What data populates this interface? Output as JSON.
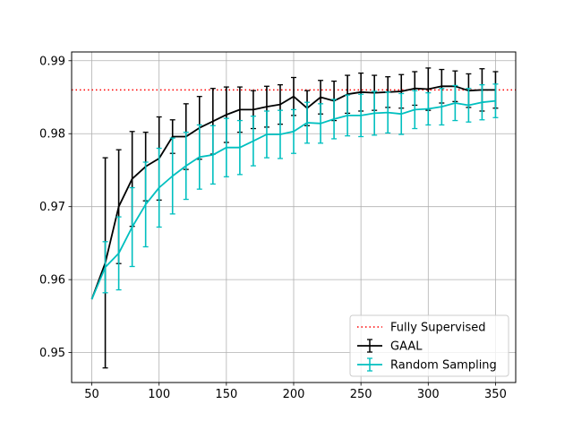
{
  "chart_data": {
    "type": "line",
    "title": "",
    "xlabel": "",
    "ylabel": "",
    "xlim": [
      35,
      365
    ],
    "ylim": [
      0.9459,
      0.9912
    ],
    "xticks": [
      50,
      100,
      150,
      200,
      250,
      300,
      350
    ],
    "yticks": [
      0.95,
      0.96,
      0.97,
      0.98,
      0.99
    ],
    "grid": true,
    "legend_position": "lower-right",
    "reference_line": {
      "name": "Fully Supervised",
      "y": 0.986,
      "color": "#ff0000",
      "style": "dotted"
    },
    "x": [
      50,
      60,
      70,
      80,
      90,
      100,
      110,
      120,
      130,
      140,
      150,
      160,
      170,
      180,
      190,
      200,
      210,
      220,
      230,
      240,
      250,
      260,
      270,
      280,
      290,
      300,
      310,
      320,
      330,
      340,
      350
    ],
    "series": [
      {
        "name": "GAAL",
        "color": "#000000",
        "values": [
          0.9573,
          0.9623,
          0.97,
          0.9738,
          0.9755,
          0.9766,
          0.9796,
          0.9796,
          0.9808,
          0.9817,
          0.9826,
          0.9833,
          0.9833,
          0.9837,
          0.984,
          0.9851,
          0.9835,
          0.985,
          0.9845,
          0.9854,
          0.9857,
          0.9856,
          0.9857,
          0.9858,
          0.9862,
          0.9861,
          0.9865,
          0.9865,
          0.9859,
          0.986,
          0.986
        ],
        "errors": [
          0.0,
          0.0144,
          0.0078,
          0.0065,
          0.0047,
          0.0057,
          0.0023,
          0.0045,
          0.0043,
          0.0045,
          0.0038,
          0.0031,
          0.0026,
          0.0028,
          0.0027,
          0.0026,
          0.0024,
          0.0023,
          0.0027,
          0.0026,
          0.0026,
          0.0024,
          0.0021,
          0.0023,
          0.0023,
          0.0029,
          0.0023,
          0.0021,
          0.0023,
          0.0029,
          0.0025
        ]
      },
      {
        "name": "Random Sampling",
        "color": "#00bfbf",
        "values": [
          0.9573,
          0.9617,
          0.9636,
          0.9672,
          0.9703,
          0.9726,
          0.9742,
          0.9756,
          0.9768,
          0.9771,
          0.9781,
          0.9781,
          0.979,
          0.9799,
          0.9799,
          0.9803,
          0.9815,
          0.9814,
          0.982,
          0.9825,
          0.9825,
          0.9828,
          0.9829,
          0.9827,
          0.9833,
          0.9834,
          0.9837,
          0.9842,
          0.9839,
          0.9843,
          0.9845
        ],
        "errors": [
          0.0,
          0.0035,
          0.005,
          0.0054,
          0.0058,
          0.0054,
          0.0052,
          0.0046,
          0.0044,
          0.004,
          0.004,
          0.0037,
          0.0034,
          0.0032,
          0.0033,
          0.003,
          0.0028,
          0.0027,
          0.0027,
          0.0028,
          0.0029,
          0.003,
          0.0028,
          0.0028,
          0.0026,
          0.0022,
          0.0025,
          0.0024,
          0.0023,
          0.0024,
          0.0023
        ]
      }
    ]
  }
}
